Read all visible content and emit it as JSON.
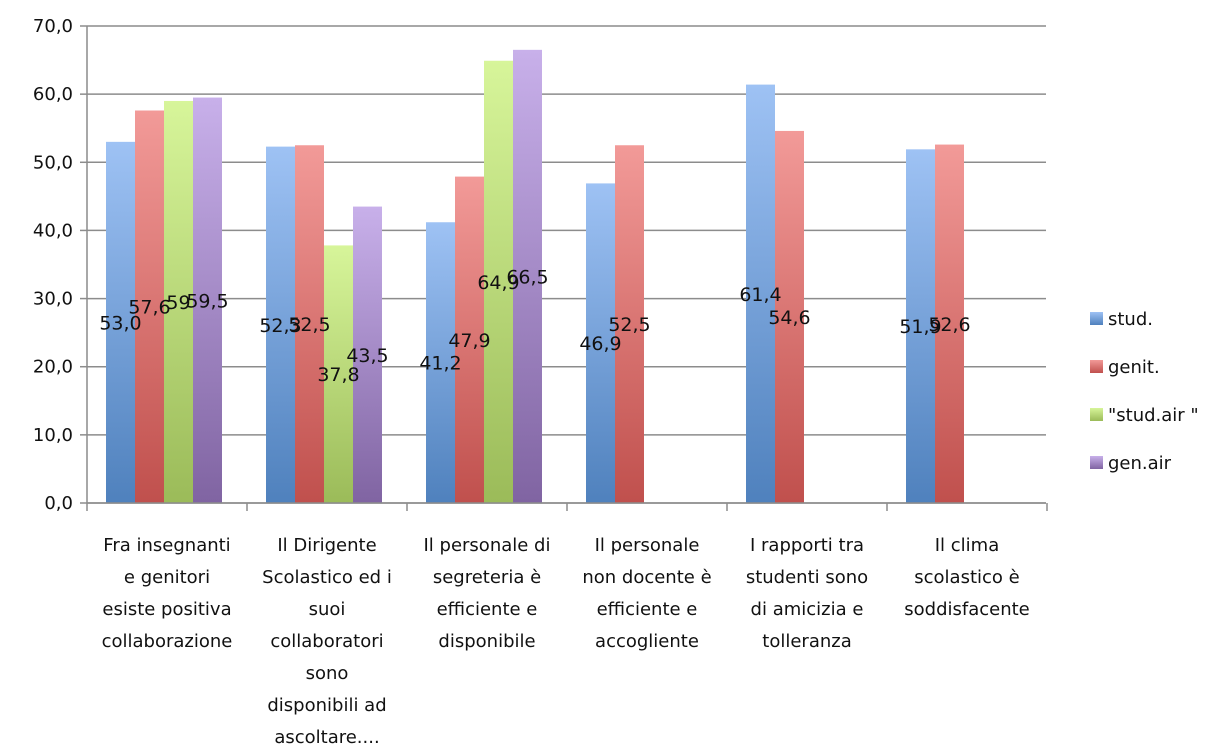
{
  "chart_data": {
    "type": "bar",
    "categories": [
      "Fra insegnanti e genitori esiste positiva collaborazione",
      "Il Dirigente Scolastico ed i suoi collaboratori sono disponibili ad ascoltare....",
      "Il personale di segreteria è efficiente e disponibile",
      "Il personale non docente è efficiente e accogliente",
      "I rapporti tra studenti sono di amicizia e tolleranza",
      "Il clima scolastico è soddisfacente"
    ],
    "category_lines": [
      [
        "Fra insegnanti",
        "e genitori",
        "esiste positiva",
        "collaborazione"
      ],
      [
        "Il Dirigente",
        "Scolastico ed i",
        "suoi",
        "collaboratori",
        "sono",
        "disponibili ad",
        "ascoltare...."
      ],
      [
        "Il personale di",
        "segreteria è",
        "efficiente e",
        "disponibile"
      ],
      [
        "Il personale",
        "non docente è",
        "efficiente e",
        "accogliente"
      ],
      [
        "I rapporti tra",
        "studenti sono",
        "di amicizia e",
        "tolleranza"
      ],
      [
        "Il clima",
        "scolastico è",
        "soddisfacente"
      ]
    ],
    "series": [
      {
        "name": "stud.",
        "color": "#4f81bd",
        "light": "#9ec2f4",
        "values": [
          53.0,
          52.3,
          41.2,
          46.9,
          61.4,
          51.9
        ],
        "labels": [
          "53,0",
          "52,3",
          "41,2",
          "46,9",
          "61,4",
          "51,9"
        ]
      },
      {
        "name": "genit.",
        "color": "#c0504d",
        "light": "#f29a98",
        "values": [
          57.6,
          52.5,
          47.9,
          52.5,
          54.6,
          52.6
        ],
        "labels": [
          "57,6",
          "52,5",
          "47,9",
          "52,5",
          "54,6",
          "52,6"
        ]
      },
      {
        "name": "\"stud.air \"",
        "color": "#9bbb59",
        "light": "#d7f59a",
        "values": [
          59,
          37.8,
          64.9,
          null,
          null,
          null
        ],
        "labels": [
          "59",
          "37,8",
          "64,9",
          null,
          null,
          null
        ]
      },
      {
        "name": "gen.air",
        "color": "#8064a2",
        "light": "#c8b0ea",
        "values": [
          59.5,
          43.5,
          66.5,
          null,
          null,
          null
        ],
        "labels": [
          "59,5",
          "43,5",
          "66,5",
          null,
          null,
          null
        ]
      }
    ],
    "yticks": [
      "0,0",
      "10,0",
      "20,0",
      "30,0",
      "40,0",
      "50,0",
      "60,0",
      "70,0"
    ],
    "ylim": [
      0,
      70
    ],
    "grid": true,
    "legend_position": "right"
  }
}
